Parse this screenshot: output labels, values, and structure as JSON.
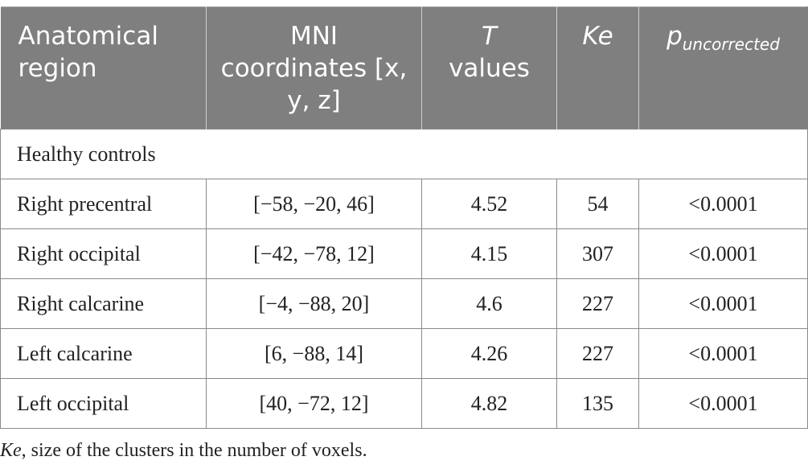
{
  "table": {
    "headers": {
      "region": "Anatomical region",
      "mni": "MNI coordinates [x, y, z]",
      "t_values_symbol": "T",
      "t_values_word": "values",
      "ke": "Ke",
      "p_main": "p",
      "p_subscript": "uncorrected"
    },
    "group_label": "Healthy controls",
    "rows": [
      {
        "region": "Right precentral",
        "mni": "[−58, −20, 46]",
        "t": "4.52",
        "ke": "54",
        "p": "<0.0001"
      },
      {
        "region": "Right occipital",
        "mni": "[−42, −78, 12]",
        "t": "4.15",
        "ke": "307",
        "p": "<0.0001"
      },
      {
        "region": "Right calcarine",
        "mni": "[−4, −88, 20]",
        "t": "4.6",
        "ke": "227",
        "p": "<0.0001"
      },
      {
        "region": "Left calcarine",
        "mni": "[6, −88, 14]",
        "t": "4.26",
        "ke": "227",
        "p": "<0.0001"
      },
      {
        "region": "Left occipital",
        "mni": "[40, −72, 12]",
        "t": "4.82",
        "ke": "135",
        "p": "<0.0001"
      }
    ]
  },
  "footnote": {
    "term": "Ke",
    "text": ", size of the clusters in the number of voxels."
  },
  "colors": {
    "header_background": "#7f7f7f",
    "header_text": "#ffffff",
    "grid_lines": "#8a8a8a",
    "body_text": "#222222"
  }
}
